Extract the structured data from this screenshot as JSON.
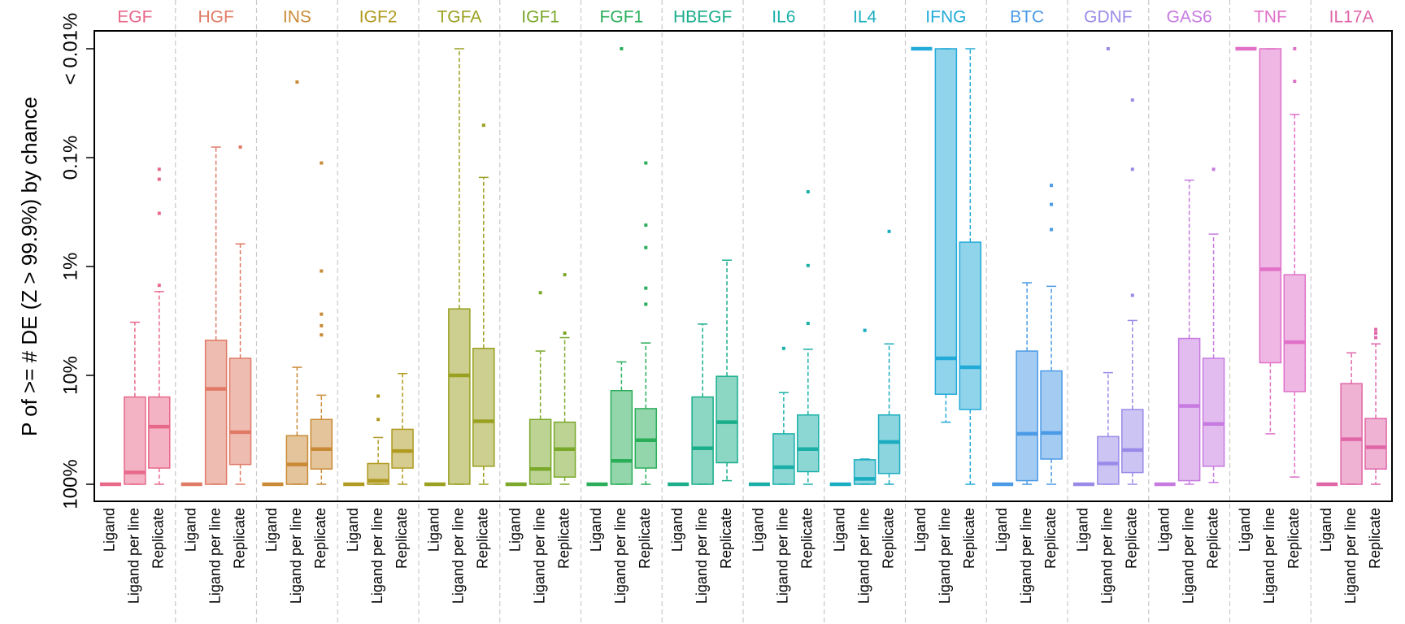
{
  "chart_data": {
    "type": "box",
    "ylabel": "P of >= # DE (Z > 99.9%) by chance",
    "log_scale": true,
    "ylim": [
      100,
      0.01
    ],
    "yticks": [
      {
        "value": 100,
        "label": "100%"
      },
      {
        "value": 10,
        "label": "10%"
      },
      {
        "value": 1,
        "label": "1%"
      },
      {
        "value": 0.1,
        "label": "0.1%"
      },
      {
        "value": 0.01,
        "label": "< 0.01%"
      }
    ],
    "groups": [
      {
        "name": "EGF",
        "color": "#e8688a",
        "boxes": [
          {
            "label": "Ligand",
            "whisker_bottom": 100,
            "box_bottom": 100,
            "median": 100,
            "box_top": 100,
            "whisker_top": 100,
            "outliers": []
          },
          {
            "label": "Ligand per line",
            "whisker_bottom": 100,
            "box_bottom": 100,
            "median": 78,
            "box_top": 15.8,
            "whisker_top": 3.25,
            "outliers": []
          },
          {
            "label": "Replicate",
            "whisker_bottom": 100,
            "box_bottom": 71,
            "median": 29.6,
            "box_top": 15.8,
            "whisker_top": 1.7,
            "outliers": [
              0.128,
              0.158,
              0.325,
              1.49
            ]
          }
        ]
      },
      {
        "name": "HGF",
        "color": "#e07a65",
        "boxes": [
          {
            "label": "Ligand",
            "whisker_bottom": 100,
            "box_bottom": 100,
            "median": 100,
            "box_top": 100,
            "whisker_top": 100,
            "outliers": []
          },
          {
            "label": "Ligand per line",
            "whisker_bottom": 100,
            "box_bottom": 100,
            "median": 13.3,
            "box_top": 4.76,
            "whisker_top": 0.08,
            "outliers": []
          },
          {
            "label": "Replicate",
            "whisker_bottom": 100,
            "box_bottom": 65.8,
            "median": 33.2,
            "box_top": 6.97,
            "whisker_top": 0.62,
            "outliers": [
              0.08
            ]
          }
        ]
      },
      {
        "name": "INS",
        "color": "#c98a35",
        "boxes": [
          {
            "label": "Ligand",
            "whisker_bottom": 100,
            "box_bottom": 100,
            "median": 100,
            "box_top": 100,
            "whisker_top": 100,
            "outliers": []
          },
          {
            "label": "Ligand per line",
            "whisker_bottom": 100,
            "box_bottom": 100,
            "median": 65.8,
            "box_top": 35.8,
            "whisker_top": 8.43,
            "outliers": [
              0.0202
            ]
          },
          {
            "label": "Replicate",
            "whisker_bottom": 100,
            "box_bottom": 72.4,
            "median": 47.6,
            "box_top": 25.4,
            "whisker_top": 15.2,
            "outliers": [
              0.112,
              1.1,
              2.74,
              3.5,
              4.25
            ]
          }
        ]
      },
      {
        "name": "IGF2",
        "color": "#b09a20",
        "boxes": [
          {
            "label": "Ligand",
            "whisker_bottom": 100,
            "box_bottom": 100,
            "median": 100,
            "box_top": 100,
            "whisker_top": 100,
            "outliers": []
          },
          {
            "label": "Ligand per line",
            "whisker_bottom": 100,
            "box_bottom": 100,
            "median": 92.7,
            "box_top": 64.5,
            "whisker_top": 37.2,
            "outliers": [
              15.5,
              25.4
            ]
          },
          {
            "label": "Replicate",
            "whisker_bottom": 100,
            "box_bottom": 71,
            "median": 49.5,
            "box_top": 31.3,
            "whisker_top": 9.62,
            "outliers": []
          }
        ]
      },
      {
        "name": "TGFA",
        "color": "#9aa020",
        "boxes": [
          {
            "label": "Ligand",
            "whisker_bottom": 100,
            "box_bottom": 100,
            "median": 100,
            "box_top": 100,
            "whisker_top": 100,
            "outliers": []
          },
          {
            "label": "Ligand per line",
            "whisker_bottom": 100,
            "box_bottom": 100,
            "median": 10,
            "box_top": 2.45,
            "whisker_top": 0.01,
            "outliers": []
          },
          {
            "label": "Replicate",
            "whisker_bottom": 100,
            "box_bottom": 68.4,
            "median": 26.4,
            "box_top": 5.65,
            "whisker_top": 0.152,
            "outliers": [
              0.0504
            ]
          }
        ]
      },
      {
        "name": "IGF1",
        "color": "#7aa82a",
        "boxes": [
          {
            "label": "Ligand",
            "whisker_bottom": 100,
            "box_bottom": 100,
            "median": 100,
            "box_top": 100,
            "whisker_top": 100,
            "outliers": []
          },
          {
            "label": "Ligand per line",
            "whisker_bottom": 100,
            "box_bottom": 100,
            "median": 72.4,
            "box_top": 25.4,
            "whisker_top": 5.98,
            "outliers": [
              1.74
            ]
          },
          {
            "label": "Replicate",
            "whisker_bottom": 100,
            "box_bottom": 85.9,
            "median": 47.6,
            "box_top": 26.9,
            "whisker_top": 4.5,
            "outliers": [
              1.19,
              4.09
            ]
          }
        ]
      },
      {
        "name": "FGF1",
        "color": "#2aae5a",
        "boxes": [
          {
            "label": "Ligand",
            "whisker_bottom": 100,
            "box_bottom": 100,
            "median": 100,
            "box_top": 100,
            "whisker_top": 100,
            "outliers": []
          },
          {
            "label": "Ligand per line",
            "whisker_bottom": 100,
            "box_bottom": 100,
            "median": 61,
            "box_top": 13.8,
            "whisker_top": 7.52,
            "outliers": [
              0.01
            ]
          },
          {
            "label": "Replicate",
            "whisker_bottom": 100,
            "box_bottom": 71,
            "median": 39.4,
            "box_top": 20.2,
            "whisker_top": 5.04,
            "outliers": [
              0.112,
              0.417,
              0.67,
              1.58,
              2.22
            ]
          }
        ]
      },
      {
        "name": "HBEGF",
        "color": "#1aae8a",
        "boxes": [
          {
            "label": "Ligand",
            "whisker_bottom": 100,
            "box_bottom": 100,
            "median": 100,
            "box_top": 100,
            "whisker_top": 100,
            "outliers": []
          },
          {
            "label": "Ligand per line",
            "whisker_bottom": 100,
            "box_bottom": 100,
            "median": 46.7,
            "box_top": 15.8,
            "whisker_top": 3.38,
            "outliers": []
          },
          {
            "label": "Replicate",
            "whisker_bottom": 92.7,
            "box_bottom": 63.4,
            "median": 26.9,
            "box_top": 10.2,
            "whisker_top": 0.875,
            "outliers": []
          }
        ]
      },
      {
        "name": "IL6",
        "color": "#1ab0a8",
        "boxes": [
          {
            "label": "Ligand",
            "whisker_bottom": 100,
            "box_bottom": 100,
            "median": 100,
            "box_top": 100,
            "whisker_top": 100,
            "outliers": []
          },
          {
            "label": "Ligand per line",
            "whisker_bottom": 100,
            "box_bottom": 100,
            "median": 69.7,
            "box_top": 34.4,
            "whisker_top": 14.4,
            "outliers": [
              5.65
            ]
          },
          {
            "label": "Replicate",
            "whisker_bottom": 100,
            "box_bottom": 76.6,
            "median": 47.6,
            "box_top": 23.1,
            "whisker_top": 5.76,
            "outliers": [
              0.206,
              0.98,
              3.33
            ]
          }
        ]
      },
      {
        "name": "IL4",
        "color": "#1aacc0",
        "boxes": [
          {
            "label": "Ligand",
            "whisker_bottom": 100,
            "box_bottom": 100,
            "median": 100,
            "box_top": 100,
            "whisker_top": 100,
            "outliers": []
          },
          {
            "label": "Ligand per line",
            "whisker_bottom": 100,
            "box_bottom": 100,
            "median": 89.2,
            "box_top": 59.6,
            "whisker_top": 58.7,
            "outliers": [
              3.86
            ]
          },
          {
            "label": "Replicate",
            "whisker_bottom": 100,
            "box_bottom": 79.6,
            "median": 40.9,
            "box_top": 23.1,
            "whisker_top": 5.14,
            "outliers": [
              0.476
            ]
          }
        ]
      },
      {
        "name": "IFNG",
        "color": "#22aad8",
        "boxes": [
          {
            "label": "Ligand",
            "whisker_bottom": 0.01,
            "box_bottom": 0.01,
            "median": 0.01,
            "box_top": 0.01,
            "whisker_top": 0.01,
            "outliers": []
          },
          {
            "label": "Ligand per line",
            "whisker_bottom": 26.9,
            "box_bottom": 14.9,
            "median": 6.97,
            "box_top": 0.01,
            "whisker_top": 0.01,
            "outliers": []
          },
          {
            "label": "Replicate",
            "whisker_bottom": 100,
            "box_bottom": 20.6,
            "median": 8.43,
            "box_top": 0.598,
            "whisker_top": 0.01,
            "outliers": []
          }
        ]
      },
      {
        "name": "BTC",
        "color": "#4a9ae6",
        "boxes": [
          {
            "label": "Ligand",
            "whisker_bottom": 100,
            "box_bottom": 100,
            "median": 100,
            "box_top": 100,
            "whisker_top": 100,
            "outliers": []
          },
          {
            "label": "Ligand per line",
            "whisker_bottom": 100,
            "box_bottom": 92.7,
            "median": 34.4,
            "box_top": 5.98,
            "whisker_top": 1.41,
            "outliers": []
          },
          {
            "label": "Replicate",
            "whisker_bottom": 100,
            "box_bottom": 58.7,
            "median": 33.8,
            "box_top": 9.1,
            "whisker_top": 1.52,
            "outliers": [
              0.18,
              0.269,
              0.458
            ]
          }
        ]
      },
      {
        "name": "GDNF",
        "color": "#9a8ae8",
        "boxes": [
          {
            "label": "Ligand",
            "whisker_bottom": 100,
            "box_bottom": 100,
            "median": 100,
            "box_top": 100,
            "whisker_top": 100,
            "outliers": []
          },
          {
            "label": "Ligand per line",
            "whisker_bottom": 100,
            "box_bottom": 100,
            "median": 64.5,
            "box_top": 36.5,
            "whisker_top": 9.44,
            "outliers": [
              0.01
            ]
          },
          {
            "label": "Replicate",
            "whisker_bottom": 100,
            "box_bottom": 78.1,
            "median": 48.5,
            "box_top": 20.6,
            "whisker_top": 3.13,
            "outliers": [
              0.0296,
              0.128,
              1.84
            ]
          }
        ]
      },
      {
        "name": "GAS6",
        "color": "#c77ae0",
        "boxes": [
          {
            "label": "Ligand",
            "whisker_bottom": 100,
            "box_bottom": 100,
            "median": 100,
            "box_top": 100,
            "whisker_top": 100,
            "outliers": []
          },
          {
            "label": "Ligand per line",
            "whisker_bottom": 100,
            "box_bottom": 92.7,
            "median": 19.1,
            "box_top": 4.58,
            "whisker_top": 0.161,
            "outliers": []
          },
          {
            "label": "Replicate",
            "whisker_bottom": 96.3,
            "box_bottom": 68.4,
            "median": 27.9,
            "box_top": 6.97,
            "whisker_top": 0.504,
            "outliers": [
              0.128
            ]
          }
        ]
      },
      {
        "name": "TNF",
        "color": "#e070c8",
        "boxes": [
          {
            "label": "Ligand",
            "whisker_bottom": 0.01,
            "box_bottom": 0.01,
            "median": 0.01,
            "box_top": 0.01,
            "whisker_top": 0.01,
            "outliers": []
          },
          {
            "label": "Ligand per line",
            "whisker_bottom": 34.4,
            "box_bottom": 7.66,
            "median": 1.06,
            "box_top": 0.01,
            "whisker_top": 0.01,
            "outliers": []
          },
          {
            "label": "Replicate",
            "whisker_bottom": 85.9,
            "box_bottom": 14.1,
            "median": 4.95,
            "box_top": 1.19,
            "whisker_top": 0.0401,
            "outliers": [
              0.01,
              0.0199
            ]
          }
        ]
      },
      {
        "name": "IL17A",
        "color": "#e066a8",
        "boxes": [
          {
            "label": "Ligand",
            "whisker_bottom": 100,
            "box_bottom": 100,
            "median": 100,
            "box_top": 100,
            "whisker_top": 100,
            "outliers": []
          },
          {
            "label": "Ligand per line",
            "whisker_bottom": 100,
            "box_bottom": 100,
            "median": 38.6,
            "box_top": 11.9,
            "whisker_top": 6.21,
            "outliers": []
          },
          {
            "label": "Replicate",
            "whisker_bottom": 100,
            "box_bottom": 72.4,
            "median": 45.8,
            "box_top": 24.9,
            "whisker_top": 5.14,
            "outliers": [
              3.79,
              4.09,
              4.5
            ]
          }
        ]
      }
    ]
  }
}
